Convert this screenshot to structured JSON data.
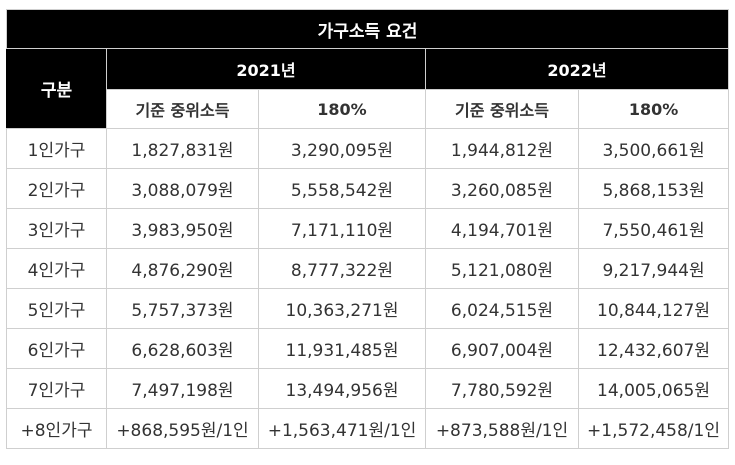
{
  "table": {
    "title": "가구소득 요건",
    "row_header": "구분",
    "years": [
      "2021년",
      "2022년"
    ],
    "sub_headers": [
      "기준 중위소득",
      "180%",
      "기준 중위소득",
      "180%"
    ],
    "rows": [
      [
        "1인가구",
        "1,827,831원",
        "3,290,095원",
        "1,944,812원",
        "3,500,661원"
      ],
      [
        "2인가구",
        "3,088,079원",
        "5,558,542원",
        "3,260,085원",
        "5,868,153원"
      ],
      [
        "3인가구",
        "3,983,950원",
        "7,171,110원",
        "4,194,701원",
        "7,550,461원"
      ],
      [
        "4인가구",
        "4,876,290원",
        "8,777,322원",
        "5,121,080원",
        "9,217,944원"
      ],
      [
        "5인가구",
        "5,757,373원",
        "10,363,271원",
        "6,024,515원",
        "10,844,127원"
      ],
      [
        "6인가구",
        "6,628,603원",
        "11,931,485원",
        "6,907,004원",
        "12,432,607원"
      ],
      [
        "7인가구",
        "7,497,198원",
        "13,494,956원",
        "7,780,592원",
        "14,005,065원"
      ],
      [
        "+8인가구",
        "+868,595원/1인",
        "+1,563,471원/1인",
        "+873,588원/1인",
        "+1,572,458/1인"
      ]
    ]
  },
  "colors": {
    "header_bg": "#000000",
    "header_text": "#ffffff",
    "border": "#cfcfcf",
    "body_text": "#333333"
  }
}
